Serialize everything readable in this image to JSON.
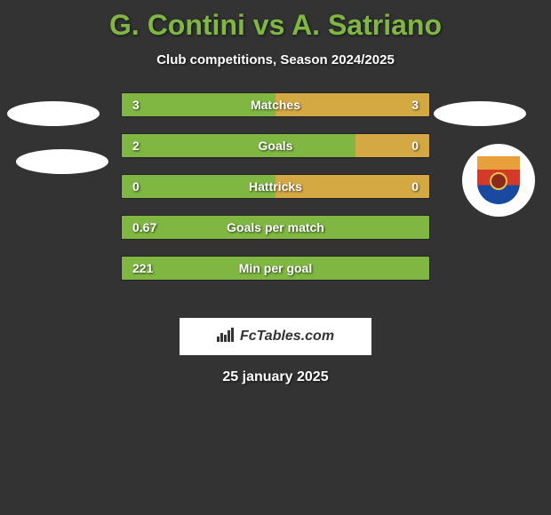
{
  "colors": {
    "background": "#333333",
    "accent_green": "#7fb742",
    "accent_gold": "#d4a943",
    "text_white": "#ffffff"
  },
  "header": {
    "player1": "G. Contini",
    "vs": "vs",
    "player2": "A. Satriano",
    "full_title": "G. Contini vs A. Satriano",
    "subtitle": "Club competitions, Season 2024/2025"
  },
  "stats": {
    "rows": [
      {
        "label": "Matches",
        "left": "3",
        "right": "3",
        "left_pct": 50,
        "show_right": true
      },
      {
        "label": "Goals",
        "left": "2",
        "right": "0",
        "left_pct": 76,
        "show_right": true
      },
      {
        "label": "Hattricks",
        "left": "0",
        "right": "0",
        "left_pct": 50,
        "show_right": true
      },
      {
        "label": "Goals per match",
        "left": "0.67",
        "right": "",
        "left_pct": 100,
        "show_right": false
      },
      {
        "label": "Min per goal",
        "left": "221",
        "right": "",
        "left_pct": 100,
        "show_right": false
      }
    ]
  },
  "badge": {
    "icon": "club-crest"
  },
  "watermark": {
    "icon": "bars-icon",
    "text": "FcTables.com"
  },
  "footer": {
    "date": "25 january 2025"
  }
}
